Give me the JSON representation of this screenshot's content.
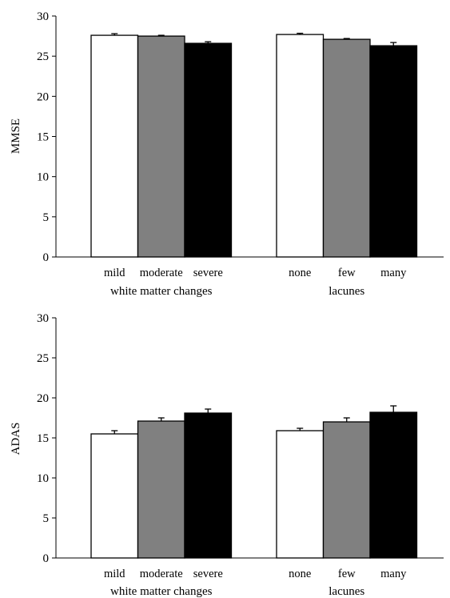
{
  "chart_data": [
    {
      "type": "bar",
      "ylabel": "MMSE",
      "ylim": [
        0,
        30
      ],
      "yticks": [
        0,
        5,
        10,
        15,
        20,
        25,
        30
      ],
      "groups": [
        {
          "label": "white matter changes",
          "categories": [
            "mild",
            "moderate",
            "severe"
          ],
          "values": [
            27.6,
            27.5,
            26.6
          ],
          "errors": [
            0.2,
            0.1,
            0.2
          ]
        },
        {
          "label": "lacunes",
          "categories": [
            "none",
            "few",
            "many"
          ],
          "values": [
            27.7,
            27.1,
            26.3
          ],
          "errors": [
            0.15,
            0.1,
            0.4
          ]
        }
      ],
      "bar_colors": [
        "#ffffff",
        "#808080",
        "#000000"
      ]
    },
    {
      "type": "bar",
      "ylabel": "ADAS",
      "ylim": [
        0,
        30
      ],
      "yticks": [
        0,
        5,
        10,
        15,
        20,
        25,
        30
      ],
      "groups": [
        {
          "label": "white matter changes",
          "categories": [
            "mild",
            "moderate",
            "severe"
          ],
          "values": [
            15.5,
            17.1,
            18.1
          ],
          "errors": [
            0.4,
            0.4,
            0.5
          ]
        },
        {
          "label": "lacunes",
          "categories": [
            "none",
            "few",
            "many"
          ],
          "values": [
            15.9,
            17.0,
            18.2
          ],
          "errors": [
            0.3,
            0.5,
            0.8
          ]
        }
      ],
      "bar_colors": [
        "#ffffff",
        "#808080",
        "#000000"
      ]
    }
  ]
}
